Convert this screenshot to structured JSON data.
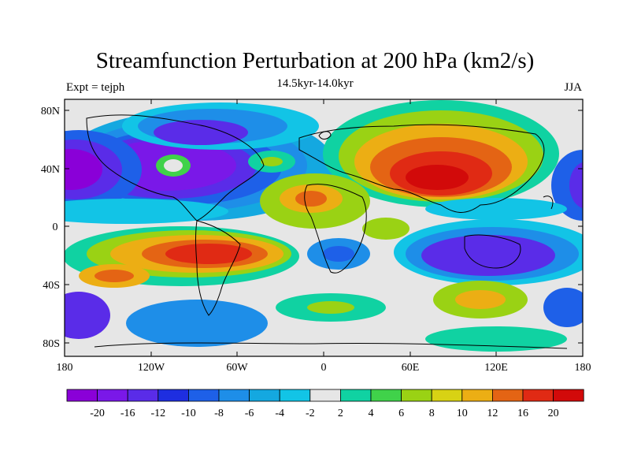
{
  "title": "Streamfunction Perturbation at 200 hPa (km2/s)",
  "subtitle": "14.5kyr-14.0kyr",
  "left_label": "Expt = tejph",
  "right_label": "JJA",
  "lat_ticks": [
    "80N",
    "40N",
    "0",
    "40S",
    "80S"
  ],
  "lon_ticks": [
    "180",
    "120W",
    "60W",
    "0",
    "60E",
    "120E",
    "180"
  ],
  "colorbar": {
    "colors": [
      "#8a00d8",
      "#7a18e8",
      "#5a2ce8",
      "#1e2ee0",
      "#1e60e8",
      "#1e8ee8",
      "#14a8e0",
      "#12c4e6",
      "#e6e6e6",
      "#10d2a2",
      "#40d24a",
      "#9ad214",
      "#d8d214",
      "#ecae14",
      "#e46414",
      "#e02a14",
      "#d20a0a"
    ],
    "labels": [
      "-20",
      "-16",
      "-12",
      "-10",
      "-8",
      "-6",
      "-4",
      "-2",
      "2",
      "4",
      "6",
      "8",
      "10",
      "12",
      "16",
      "20"
    ]
  }
}
